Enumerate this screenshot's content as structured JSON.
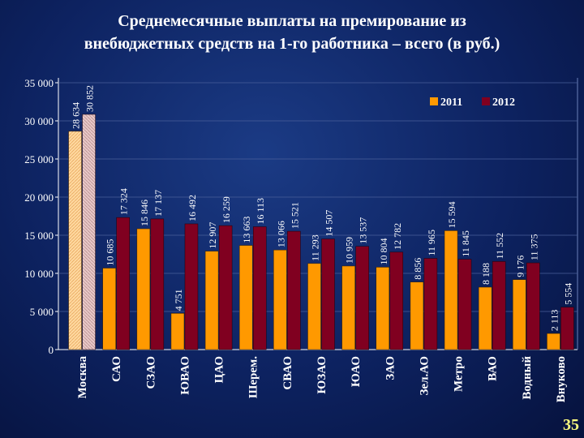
{
  "title_line1": "Среднемесячные выплаты на премирование из",
  "title_line2": "внебюджетных средств на 1-го работника – всего (в руб.)",
  "page_number": "35",
  "colors": {
    "series_2011": "#ff9900",
    "series_2012": "#800020",
    "moskva_2011": "#ffd9a0",
    "moskva_2012": "#e8c8c8"
  },
  "chart_data": {
    "type": "bar",
    "categories": [
      "Москва",
      "САО",
      "СЗАО",
      "ЮВАО",
      "ЦАО",
      "Шерем.",
      "СВАО",
      "ЮЗАО",
      "ЮАО",
      "ЗАО",
      "Зел.АО",
      "Метро",
      "ВАО",
      "Водный",
      "Внуково"
    ],
    "series": [
      {
        "name": "2011",
        "values": [
          28634,
          10685,
          15846,
          4751,
          12907,
          13663,
          13066,
          11293,
          10959,
          10804,
          8856,
          15594,
          8188,
          9176,
          2113
        ],
        "labels": [
          "28 634",
          "10 685",
          "15 846",
          "4 751",
          "12 907",
          "13 663",
          "13 066",
          "11 293",
          "10 959",
          "10 804",
          "8 856",
          "15 594",
          "8 188",
          "9 176",
          "2 113"
        ]
      },
      {
        "name": "2012",
        "values": [
          30852,
          17324,
          17137,
          16492,
          16259,
          16113,
          15521,
          14507,
          13537,
          12782,
          11965,
          11845,
          11552,
          11375,
          5554
        ],
        "labels": [
          "30 852",
          "17 324",
          "17 137",
          "16 492",
          "16 259",
          "16 113",
          "15 521",
          "14 507",
          "13 537",
          "12 782",
          "11 965",
          "11 845",
          "11 552",
          "11 375",
          "5 554"
        ]
      }
    ],
    "y_ticks": [
      "0",
      "5 000",
      "10 000",
      "15 000",
      "20 000",
      "25 000",
      "30 000",
      "35 000"
    ],
    "ylim": [
      0,
      35000
    ],
    "grid": true,
    "legend_position": "top-right"
  }
}
